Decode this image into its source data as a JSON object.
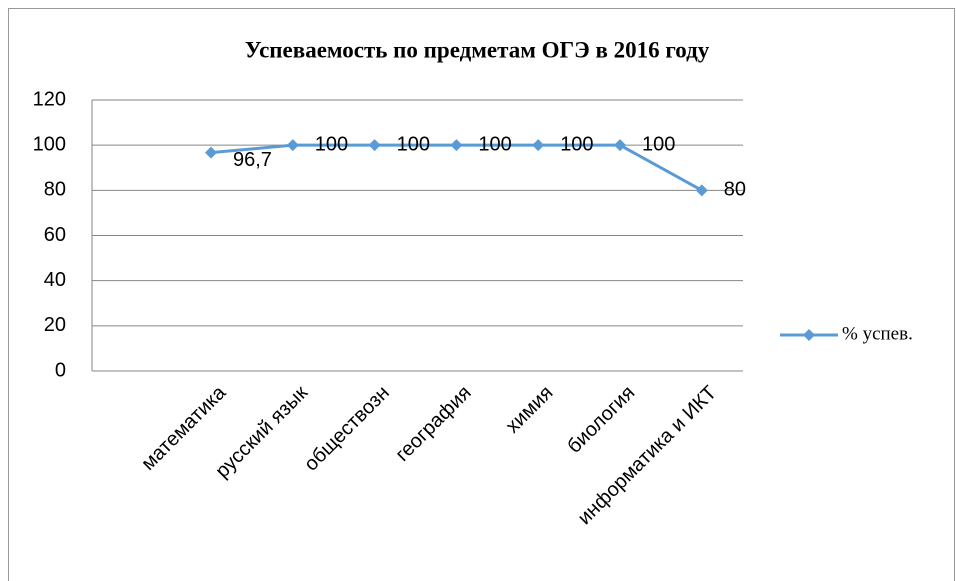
{
  "chart_data": {
    "type": "line",
    "title": "Успеваемость по предметам ОГЭ в 2016 году",
    "categories": [
      "математика",
      "русский язык",
      "обществозн",
      "география",
      "химия",
      "биология",
      "информатика и ИКТ"
    ],
    "series": [
      {
        "name": "% успев.",
        "color": "#5b9bd5",
        "values": [
          96.7,
          100,
          100,
          100,
          100,
          100,
          80
        ],
        "value_labels": [
          "96,7",
          "100",
          "100",
          "100",
          "100",
          "100",
          "80"
        ]
      }
    ],
    "ylim": [
      0,
      120
    ],
    "yticks": [
      0,
      20,
      40,
      60,
      80,
      100,
      120
    ],
    "grid": true,
    "legend": "right"
  }
}
